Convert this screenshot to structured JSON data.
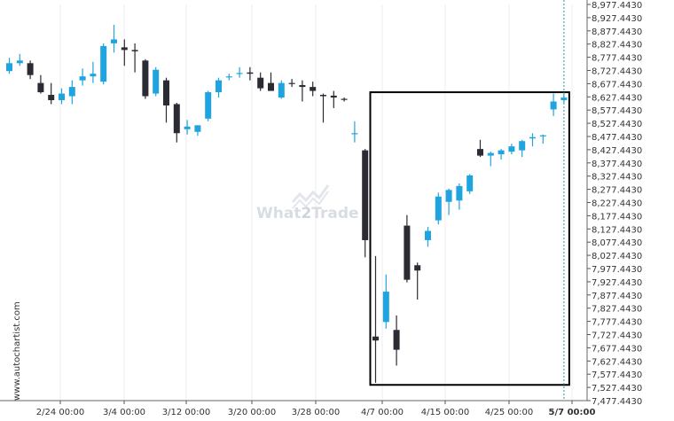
{
  "chart_data": {
    "type": "candlestick",
    "x_tick_labels": [
      "2/24 00:00",
      "3/4 00:00",
      "3/12 00:00",
      "3/20 00:00",
      "3/28 00:00",
      "4/7 00:00",
      "4/15 00:00",
      "4/25 00:00",
      "5/7 00:00"
    ],
    "y_tick_labels": [
      "8,977.4430",
      "8,927.4430",
      "8,877.4430",
      "8,827.4430",
      "8,777.4430",
      "8,727.4430",
      "8,677.4430",
      "8,627.4430",
      "8,577.4430",
      "8,527.4430",
      "8,477.4430",
      "8,427.4430",
      "8,377.4430",
      "8,327.4430",
      "8,277.4430",
      "8,227.4430",
      "8,177.4430",
      "8,127.4430",
      "8,077.4430",
      "8,027.4430",
      "7,977.4430",
      "7,927.4430",
      "7,877.4430",
      "7,827.4430",
      "7,777.4430",
      "7,727.4430",
      "7,677.4430",
      "7,627.4430",
      "7,577.4430",
      "7,527.4430",
      "7,477.4430"
    ],
    "ylim": [
      7477.443,
      8977.443
    ],
    "bullish_color": "#1fa4e0",
    "bearish_color": "#2b2b33",
    "highlight_rect": {
      "start_index": 35,
      "end_index": 53,
      "price_low": 7537,
      "price_high": 8645
    },
    "last_price_marker": true,
    "candles": [
      {
        "o": 8725,
        "h": 8775,
        "l": 8715,
        "c": 8755
      },
      {
        "o": 8755,
        "h": 8790,
        "l": 8745,
        "c": 8765
      },
      {
        "o": 8755,
        "h": 8765,
        "l": 8695,
        "c": 8710
      },
      {
        "o": 8680,
        "h": 8710,
        "l": 8640,
        "c": 8645
      },
      {
        "o": 8635,
        "h": 8680,
        "l": 8600,
        "c": 8615
      },
      {
        "o": 8615,
        "h": 8660,
        "l": 8600,
        "c": 8640
      },
      {
        "o": 8630,
        "h": 8690,
        "l": 8600,
        "c": 8665
      },
      {
        "o": 8690,
        "h": 8735,
        "l": 8670,
        "c": 8705
      },
      {
        "o": 8705,
        "h": 8760,
        "l": 8680,
        "c": 8715
      },
      {
        "o": 8685,
        "h": 8830,
        "l": 8675,
        "c": 8820
      },
      {
        "o": 8830,
        "h": 8900,
        "l": 8795,
        "c": 8845
      },
      {
        "o": 8815,
        "h": 8845,
        "l": 8745,
        "c": 8805
      },
      {
        "o": 8805,
        "h": 8830,
        "l": 8720,
        "c": 8800
      },
      {
        "o": 8765,
        "h": 8770,
        "l": 8620,
        "c": 8630
      },
      {
        "o": 8640,
        "h": 8740,
        "l": 8630,
        "c": 8730
      },
      {
        "o": 8690,
        "h": 8700,
        "l": 8530,
        "c": 8595
      },
      {
        "o": 8600,
        "h": 8605,
        "l": 8455,
        "c": 8490
      },
      {
        "o": 8505,
        "h": 8540,
        "l": 8485,
        "c": 8515
      },
      {
        "o": 8495,
        "h": 8515,
        "l": 8480,
        "c": 8520
      },
      {
        "o": 8545,
        "h": 8650,
        "l": 8535,
        "c": 8645
      },
      {
        "o": 8645,
        "h": 8700,
        "l": 8625,
        "c": 8690
      },
      {
        "o": 8705,
        "h": 8715,
        "l": 8690,
        "c": 8705
      },
      {
        "o": 8715,
        "h": 8740,
        "l": 8700,
        "c": 8718
      },
      {
        "o": 8720,
        "h": 8740,
        "l": 8690,
        "c": 8715
      },
      {
        "o": 8700,
        "h": 8720,
        "l": 8650,
        "c": 8660
      },
      {
        "o": 8680,
        "h": 8720,
        "l": 8655,
        "c": 8650
      },
      {
        "o": 8625,
        "h": 8690,
        "l": 8620,
        "c": 8680
      },
      {
        "o": 8680,
        "h": 8695,
        "l": 8665,
        "c": 8677
      },
      {
        "o": 8672,
        "h": 8690,
        "l": 8610,
        "c": 8665
      },
      {
        "o": 8665,
        "h": 8685,
        "l": 8630,
        "c": 8650
      },
      {
        "o": 8635,
        "h": 8640,
        "l": 8530,
        "c": 8630
      },
      {
        "o": 8632,
        "h": 8650,
        "l": 8585,
        "c": 8625
      },
      {
        "o": 8620,
        "h": 8625,
        "l": 8610,
        "c": 8618
      },
      {
        "o": 8490,
        "h": 8535,
        "l": 8455,
        "c": 8490
      },
      {
        "o": 8425,
        "h": 8430,
        "l": 8020,
        "c": 8085
      },
      {
        "o": 7720,
        "h": 8025,
        "l": 7545,
        "c": 7705
      },
      {
        "o": 7775,
        "h": 7955,
        "l": 7750,
        "c": 7890
      },
      {
        "o": 7745,
        "h": 7800,
        "l": 7610,
        "c": 7670
      },
      {
        "o": 8140,
        "h": 8180,
        "l": 7925,
        "c": 7935
      },
      {
        "o": 7990,
        "h": 8000,
        "l": 7860,
        "c": 7970
      },
      {
        "o": 8085,
        "h": 8135,
        "l": 8060,
        "c": 8120
      },
      {
        "o": 8160,
        "h": 8265,
        "l": 8145,
        "c": 8250
      },
      {
        "o": 8230,
        "h": 8280,
        "l": 8180,
        "c": 8275
      },
      {
        "o": 8235,
        "h": 8300,
        "l": 8200,
        "c": 8290
      },
      {
        "o": 8270,
        "h": 8335,
        "l": 8260,
        "c": 8330
      },
      {
        "o": 8430,
        "h": 8465,
        "l": 8400,
        "c": 8405
      },
      {
        "o": 8405,
        "h": 8420,
        "l": 8365,
        "c": 8415
      },
      {
        "o": 8410,
        "h": 8430,
        "l": 8390,
        "c": 8425
      },
      {
        "o": 8420,
        "h": 8450,
        "l": 8410,
        "c": 8440
      },
      {
        "o": 8425,
        "h": 8465,
        "l": 8400,
        "c": 8460
      },
      {
        "o": 8470,
        "h": 8490,
        "l": 8440,
        "c": 8475
      },
      {
        "o": 8480,
        "h": 8485,
        "l": 8450,
        "c": 8482
      },
      {
        "o": 8580,
        "h": 8640,
        "l": 8555,
        "c": 8610
      },
      {
        "o": 8615,
        "h": 8640,
        "l": 8605,
        "c": 8625
      }
    ]
  },
  "watermark": {
    "prefix": "What",
    "digit": "2",
    "suffix": "Trade"
  },
  "side_credit": "www.autochartist.com"
}
